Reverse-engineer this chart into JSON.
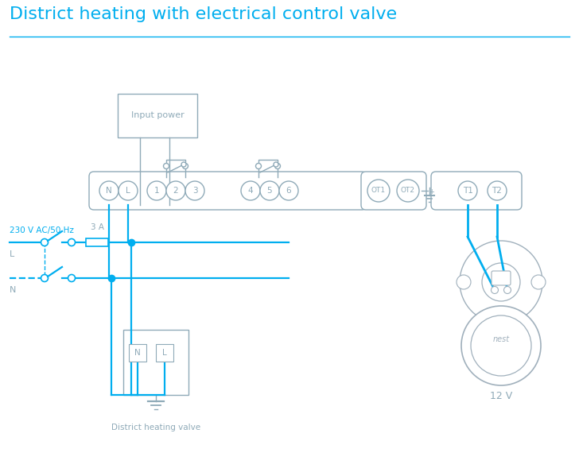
{
  "title": "District heating with electrical control valve",
  "title_color": "#00AEEF",
  "title_fontsize": 16,
  "bg_color": "#ffffff",
  "line_color": "#00AEEF",
  "box_color": "#8faab8",
  "wire_lw": 1.6,
  "input_power_label": "Input power",
  "district_valve_label": "District heating valve",
  "label_12v": "12 V",
  "label_230v": "230 V AC/50 Hz",
  "label_3a": "3 A",
  "label_L": "L",
  "label_N": "N",
  "nest_color": "#a0b0bc"
}
